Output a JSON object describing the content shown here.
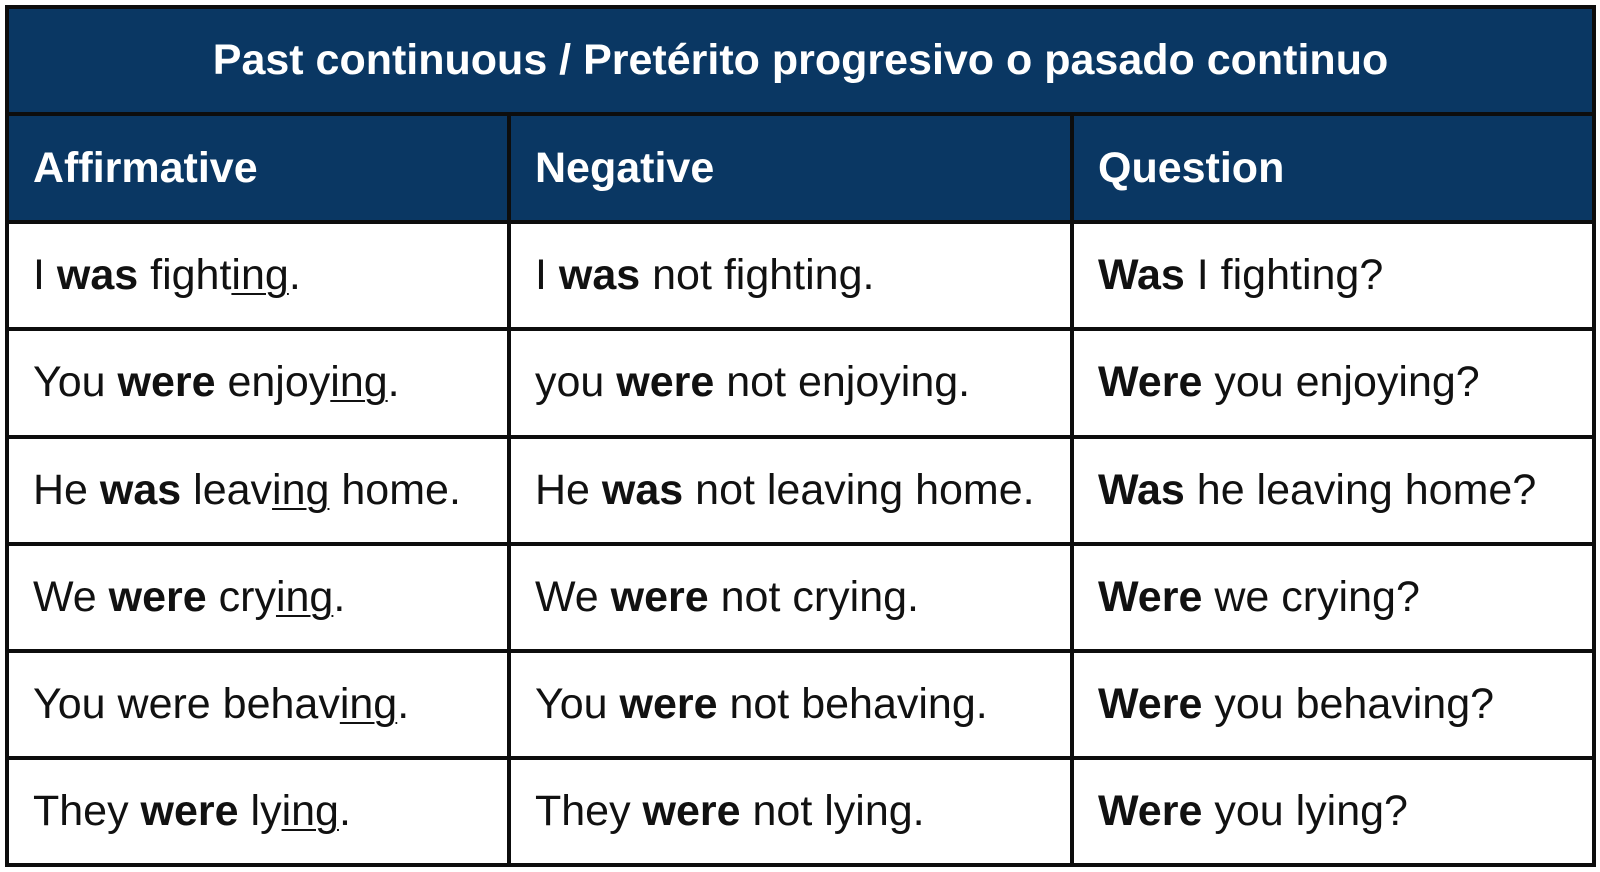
{
  "title": "Past continuous  / Pretérito progresivo o pasado continuo",
  "colors": {
    "header_bg": "#0a3763",
    "header_text": "#ffffff",
    "border": "#0d0d0d"
  },
  "columns": [
    "Affirmative",
    "Negative",
    "Question"
  ],
  "rows": [
    [
      [
        {
          "t": "I "
        },
        {
          "t": "was",
          "s": "b"
        },
        {
          "t": " fight"
        },
        {
          "t": "ing",
          "s": "u"
        },
        {
          "t": "."
        }
      ],
      [
        {
          "t": "I "
        },
        {
          "t": "was",
          "s": "b"
        },
        {
          "t": " not fighting."
        }
      ],
      [
        {
          "t": "Was",
          "s": "b"
        },
        {
          "t": " I fighting?"
        }
      ]
    ],
    [
      [
        {
          "t": "You "
        },
        {
          "t": "were",
          "s": "b"
        },
        {
          "t": " enjoy"
        },
        {
          "t": "ing",
          "s": "u"
        },
        {
          "t": "."
        }
      ],
      [
        {
          "t": "you "
        },
        {
          "t": "were",
          "s": "b"
        },
        {
          "t": " not enjoying."
        }
      ],
      [
        {
          "t": "Were",
          "s": "b"
        },
        {
          "t": " you enjoying?"
        }
      ]
    ],
    [
      [
        {
          "t": "He "
        },
        {
          "t": "was",
          "s": "b"
        },
        {
          "t": " leav"
        },
        {
          "t": "ing",
          "s": "u"
        },
        {
          "t": " home."
        }
      ],
      [
        {
          "t": "He "
        },
        {
          "t": "was",
          "s": "b"
        },
        {
          "t": " not leaving home."
        }
      ],
      [
        {
          "t": "Was",
          "s": "b"
        },
        {
          "t": " he leaving home?"
        }
      ]
    ],
    [
      [
        {
          "t": "We "
        },
        {
          "t": "were",
          "s": "b"
        },
        {
          "t": " cry"
        },
        {
          "t": "ing",
          "s": "u"
        },
        {
          "t": "."
        }
      ],
      [
        {
          "t": "We "
        },
        {
          "t": "were",
          "s": "b"
        },
        {
          "t": " not crying."
        }
      ],
      [
        {
          "t": "Were",
          "s": "b"
        },
        {
          "t": " we crying?"
        }
      ]
    ],
    [
      [
        {
          "t": "You were behav"
        },
        {
          "t": "ing",
          "s": "u"
        },
        {
          "t": "."
        }
      ],
      [
        {
          "t": "You "
        },
        {
          "t": "were",
          "s": "b"
        },
        {
          "t": " not behaving."
        }
      ],
      [
        {
          "t": "Were",
          "s": "b"
        },
        {
          "t": " you behaving?"
        }
      ]
    ],
    [
      [
        {
          "t": "They "
        },
        {
          "t": "were",
          "s": "b"
        },
        {
          "t": " ly"
        },
        {
          "t": "ing",
          "s": "u"
        },
        {
          "t": "."
        }
      ],
      [
        {
          "t": "They "
        },
        {
          "t": "were",
          "s": "b"
        },
        {
          "t": " not lying."
        }
      ],
      [
        {
          "t": "Were",
          "s": "b"
        },
        {
          "t": " you lying?"
        }
      ]
    ]
  ]
}
